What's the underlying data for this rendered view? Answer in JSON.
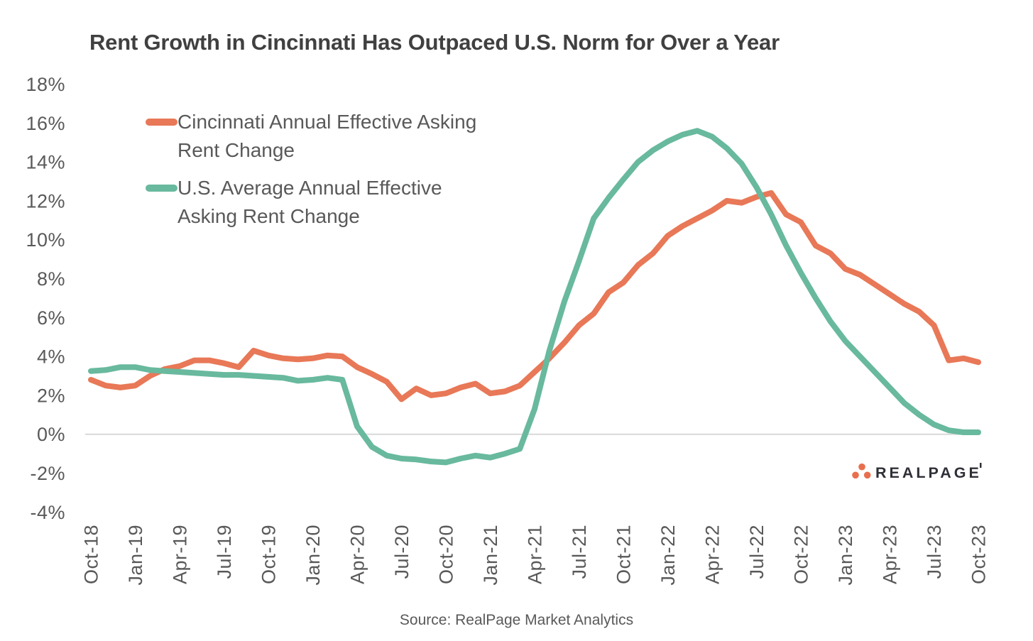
{
  "chart_data": {
    "type": "line",
    "title": "Rent Growth in Cincinnati Has Outpaced U.S. Norm for Over a Year",
    "x_tick_labels": [
      "Oct-18",
      "Jan-19",
      "Apr-19",
      "Jul-19",
      "Oct-19",
      "Jan-20",
      "Apr-20",
      "Jul-20",
      "Oct-20",
      "Jan-21",
      "Apr-21",
      "Jul-21",
      "Oct-21",
      "Jan-22",
      "Apr-22",
      "Jul-22",
      "Oct-22",
      "Jan-23",
      "Apr-23",
      "Jul-23",
      "Oct-23"
    ],
    "points_per_tick": 3,
    "y_ticks": [
      {
        "label": "18%",
        "value": 18
      },
      {
        "label": "16%",
        "value": 16
      },
      {
        "label": "14%",
        "value": 14
      },
      {
        "label": "12%",
        "value": 12
      },
      {
        "label": "10%",
        "value": 10
      },
      {
        "label": "8%",
        "value": 8
      },
      {
        "label": "6%",
        "value": 6
      },
      {
        "label": "4%",
        "value": 4
      },
      {
        "label": "2%",
        "value": 2
      },
      {
        "label": "0%",
        "value": 0
      },
      {
        "label": "-2%",
        "value": -2
      },
      {
        "label": "-4%",
        "value": -4
      }
    ],
    "ylim": [
      -4,
      18
    ],
    "grid": "zero-line-only",
    "legend_position": "top-left",
    "series": [
      {
        "name": "Cincinnati Annual Effective Asking Rent Change",
        "color": "#E87857",
        "values": [
          2.8,
          2.5,
          2.4,
          2.5,
          3.0,
          3.35,
          3.5,
          3.8,
          3.8,
          3.65,
          3.45,
          4.3,
          4.05,
          3.9,
          3.85,
          3.9,
          4.05,
          4.0,
          3.45,
          3.1,
          2.7,
          1.8,
          2.35,
          2.0,
          2.1,
          2.4,
          2.6,
          2.1,
          2.2,
          2.5,
          3.2,
          3.9,
          4.7,
          5.6,
          6.2,
          7.3,
          7.8,
          8.7,
          9.3,
          10.2,
          10.7,
          11.1,
          11.5,
          12.0,
          11.9,
          12.2,
          12.4,
          11.3,
          10.9,
          9.7,
          9.3,
          8.5,
          8.2,
          7.7,
          7.2,
          6.7,
          6.3,
          5.6,
          3.8,
          3.9,
          3.7
        ]
      },
      {
        "name": "U.S. Average Annual Effective Asking Rent Change",
        "color": "#68B99D",
        "values": [
          3.25,
          3.3,
          3.45,
          3.45,
          3.3,
          3.25,
          3.2,
          3.15,
          3.1,
          3.05,
          3.05,
          3.0,
          2.95,
          2.9,
          2.75,
          2.8,
          2.9,
          2.8,
          0.4,
          -0.65,
          -1.1,
          -1.25,
          -1.3,
          -1.4,
          -1.45,
          -1.25,
          -1.1,
          -1.2,
          -1.0,
          -0.75,
          1.3,
          4.3,
          6.8,
          8.9,
          11.1,
          12.15,
          13.1,
          14.0,
          14.6,
          15.05,
          15.4,
          15.6,
          15.3,
          14.7,
          13.9,
          12.7,
          11.3,
          9.7,
          8.3,
          7.0,
          5.8,
          4.8,
          4.0,
          3.2,
          2.4,
          1.6,
          1.0,
          0.5,
          0.2,
          0.1,
          0.1
        ]
      }
    ],
    "zero_gridline_color": "#D9D9D9",
    "axis_text_color": "#595959",
    "title_color": "#404040"
  },
  "branding": {
    "logo_text": "REALPAGE",
    "dot_color": "#E86F4D",
    "text_color": "#2F3037"
  },
  "source_note": "Source: RealPage Market Analytics"
}
